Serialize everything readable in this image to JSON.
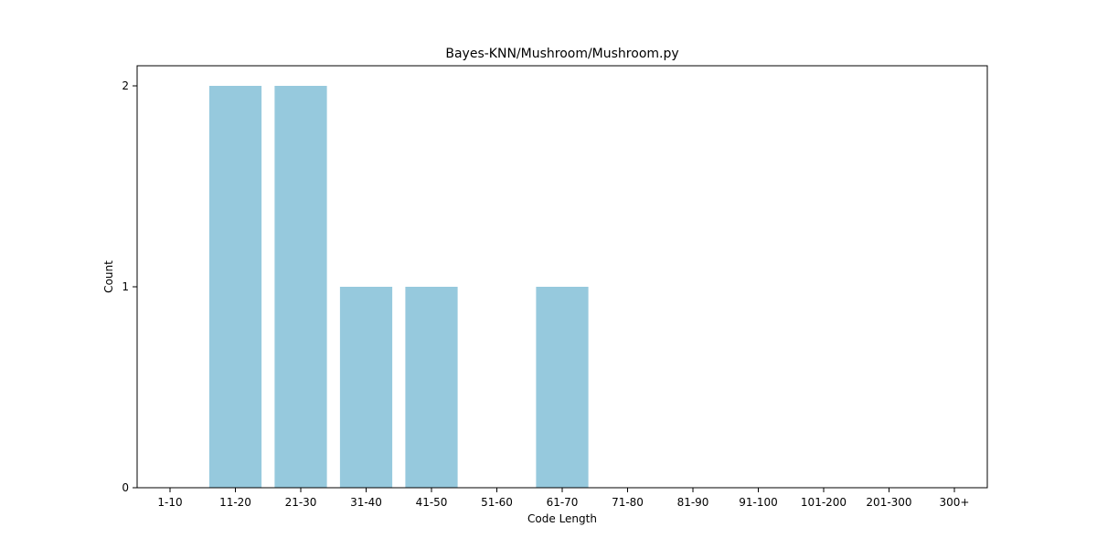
{
  "chart_data": {
    "type": "bar",
    "title": "Bayes-KNN/Mushroom/Mushroom.py",
    "xlabel": "Code Length",
    "ylabel": "Count",
    "categories": [
      "1-10",
      "11-20",
      "21-30",
      "31-40",
      "41-50",
      "51-60",
      "61-70",
      "71-80",
      "81-90",
      "91-100",
      "101-200",
      "201-300",
      "300+"
    ],
    "values": [
      0,
      2,
      2,
      1,
      1,
      0,
      1,
      0,
      0,
      0,
      0,
      0,
      0
    ],
    "ylim": [
      0,
      2.1
    ],
    "yticks": [
      0,
      1,
      2
    ],
    "bar_color": "#96c9dd",
    "grid": false,
    "legend": "none"
  }
}
